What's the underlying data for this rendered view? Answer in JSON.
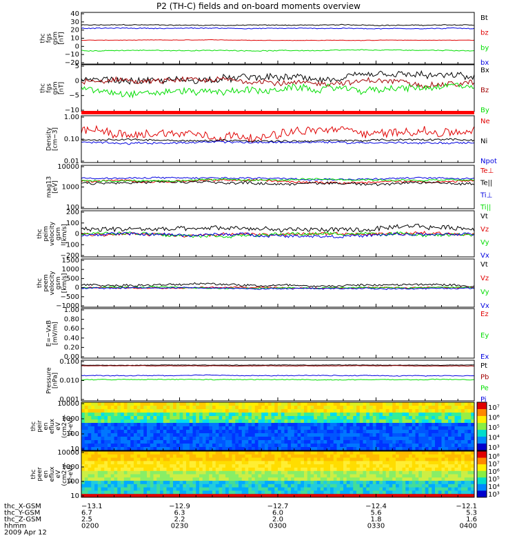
{
  "title": "P2 (TH-C) fields and on-board moments overview",
  "colors": {
    "black": "#000000",
    "red": "#e00000",
    "green": "#00dd00",
    "blue": "#0000e0",
    "darkred": "#8b0000",
    "brown": "#a00000"
  },
  "chart_data": [
    {
      "type": "line",
      "ylabel": [
        "thc",
        "fgs",
        "gsm",
        "[nT]"
      ],
      "yticks": [
        "40",
        "30",
        "20",
        "10",
        "0",
        "−10",
        "−20"
      ],
      "ylim": [
        -25,
        40
      ],
      "series": [
        {
          "name": "Bt",
          "color": "#000000",
          "level": 24,
          "noise": 1.0
        },
        {
          "name": "bz",
          "color": "#e00000",
          "level": 5,
          "noise": 0.5
        },
        {
          "name": "by",
          "color": "#00dd00",
          "level": -8,
          "noise": 1.0
        },
        {
          "name": "bx",
          "color": "#0000e0",
          "level": 20,
          "noise": 1.0
        }
      ]
    },
    {
      "type": "line",
      "ylabel": [
        "thc",
        "fgs",
        "gsm",
        "[nT]"
      ],
      "yticks": [
        "5",
        "0",
        "−5",
        "−10"
      ],
      "ylim": [
        -13,
        6
      ],
      "series": [
        {
          "name": "Bx",
          "color": "#000000",
          "level": 0,
          "noise": 2.5
        },
        {
          "name": "Bz",
          "color": "#a00000",
          "level": -1,
          "noise": 2.0
        },
        {
          "name": "By",
          "color": "#00dd00",
          "level": -4,
          "noise": 2.5
        }
      ]
    },
    {
      "type": "line",
      "ylabel": [
        "Density",
        "[cm−3]"
      ],
      "yticks": [
        "1.00",
        "0.10",
        "0.01"
      ],
      "ylim": [
        -2,
        0.1
      ],
      "log": true,
      "series": [
        {
          "name": "Ne",
          "color": "#e00000",
          "level": -0.6,
          "noise": 0.35
        },
        {
          "name": "Ni",
          "color": "#000000",
          "level": -1.0,
          "noise": 0.08
        },
        {
          "name": "Npot",
          "color": "#0000e0",
          "level": -1.1,
          "noise": 0.08
        }
      ]
    },
    {
      "type": "line",
      "ylabel": [
        "mag13",
        "[eV]"
      ],
      "yticks": [
        "10000",
        "1000",
        "100"
      ],
      "ylim": [
        2,
        4.2
      ],
      "log": true,
      "series": [
        {
          "name": "Te⊥",
          "color": "#e00000",
          "level": 3.4,
          "noise": 0.1
        },
        {
          "name": "Te||",
          "color": "#000000",
          "level": 3.3,
          "noise": 0.12
        },
        {
          "name": "Ti⊥",
          "color": "#0000e0",
          "level": 3.55,
          "noise": 0.08
        },
        {
          "name": "Ti||",
          "color": "#00dd00",
          "level": 3.45,
          "noise": 0.08
        }
      ]
    },
    {
      "type": "line",
      "ylabel": [
        "thc",
        "peim",
        "velocity",
        "gsm",
        "[km/s]"
      ],
      "yticks": [
        "200",
        "100",
        "0",
        "−100",
        "−200"
      ],
      "ylim": [
        -210,
        210
      ],
      "series": [
        {
          "name": "Vt",
          "color": "#000000",
          "level": 40,
          "noise": 40
        },
        {
          "name": "Vz",
          "color": "#e00000",
          "level": 0,
          "noise": 25
        },
        {
          "name": "Vy",
          "color": "#00dd00",
          "level": 0,
          "noise": 25
        },
        {
          "name": "Vx",
          "color": "#0000e0",
          "level": -10,
          "noise": 25
        }
      ]
    },
    {
      "type": "line",
      "ylabel": [
        "thc",
        "peem",
        "velocity",
        "gsm",
        "[km/s]"
      ],
      "yticks": [
        "1500",
        "1000",
        "500",
        "0",
        "−500",
        "−1000"
      ],
      "ylim": [
        -1100,
        1600
      ],
      "series": [
        {
          "name": "Vt",
          "color": "#000000",
          "level": 150,
          "noise": 120
        },
        {
          "name": "Vz",
          "color": "#e00000",
          "level": 0,
          "noise": 60
        },
        {
          "name": "Vy",
          "color": "#00dd00",
          "level": 0,
          "noise": 70
        },
        {
          "name": "Vx",
          "color": "#0000e0",
          "level": -30,
          "noise": 70
        }
      ]
    },
    {
      "type": "line",
      "ylabel": [
        "E=−VxB",
        "[mV/m]"
      ],
      "yticks": [
        "1.00",
        "0.80",
        "0.60",
        "0.40",
        "0.20",
        "0.00"
      ],
      "ylim": [
        0,
        1
      ],
      "series": [
        {
          "name": "Ez",
          "color": "#e00000",
          "level": null,
          "noise": 0
        },
        {
          "name": "Ey",
          "color": "#00dd00",
          "level": null,
          "noise": 0
        },
        {
          "name": "Ex",
          "color": "#0000e0",
          "level": null,
          "noise": 0
        }
      ]
    },
    {
      "type": "line",
      "ylabel": [
        "Pressure",
        "[nPa]"
      ],
      "yticks": [
        "0.100",
        "0.010",
        "0.001"
      ],
      "ylim": [
        -3.1,
        -0.2
      ],
      "log": true,
      "series": [
        {
          "name": "Pt",
          "color": "#000000",
          "level": -0.55,
          "noise": 0.03
        },
        {
          "name": "Pb",
          "color": "#a00000",
          "level": -0.6,
          "noise": 0.03
        },
        {
          "name": "Pe",
          "color": "#00dd00",
          "level": -1.6,
          "noise": 0.05
        },
        {
          "name": "Pi",
          "color": "#0000e0",
          "level": -1.3,
          "noise": 0.05
        }
      ]
    },
    {
      "type": "heatmap",
      "ylabel": [
        "thc",
        "peir",
        "en",
        "eflux",
        "eV",
        "(cm2-s-",
        "sr-eV)"
      ],
      "yticks": [
        "10000",
        "1000",
        "100",
        "10"
      ],
      "colorbar_ticks": [
        "10⁷",
        "10⁶",
        "10⁵",
        "10⁴",
        "10³"
      ]
    },
    {
      "type": "heatmap",
      "ylabel": [
        "thc",
        "peer",
        "en",
        "eflux",
        "eV",
        "(cm2-s-",
        "sr-eV)"
      ],
      "yticks": [
        "10000",
        "1000",
        "100",
        "10"
      ],
      "colorbar_ticks": [
        "10⁸",
        "10⁷",
        "10⁶",
        "10⁵",
        "10⁴",
        "10³"
      ]
    }
  ],
  "ephemeris": {
    "labels": [
      "thc_X-GSM",
      "thc_Y-GSM",
      "thc_Z-GSM",
      "hhmm",
      "2009 Apr 12"
    ],
    "columns": [
      {
        "x": "−13.1",
        "y": "6.7",
        "z": "2.5",
        "t": "0200"
      },
      {
        "x": "−12.9",
        "y": "6.3",
        "z": "2.2",
        "t": "0230"
      },
      {
        "x": "−12.7",
        "y": "6.0",
        "z": "2.0",
        "t": "0300"
      },
      {
        "x": "−12.4",
        "y": "5.6",
        "z": "1.8",
        "t": "0330"
      },
      {
        "x": "−12.1",
        "y": "5.3",
        "z": "1.6",
        "t": "0400"
      }
    ]
  }
}
